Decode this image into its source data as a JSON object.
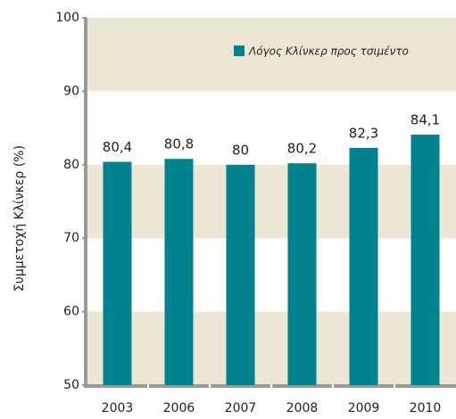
{
  "chart_data": {
    "type": "bar",
    "y_label": "Συμμετοχή Κλίνκερ (%)",
    "categories": [
      "2003",
      "2006",
      "2007",
      "2008",
      "2009",
      "2010"
    ],
    "series": [
      {
        "name": "Λόγος Κλίνκερ προς τσιμέντο",
        "color": "#00838f",
        "values": [
          80.4,
          80.8,
          80,
          80.2,
          82.3,
          84.1
        ],
        "value_labels": [
          "80,4",
          "80,8",
          "80",
          "80,2",
          "82,3",
          "84,1"
        ]
      }
    ],
    "ylim": [
      50,
      100
    ],
    "yticks": [
      50,
      60,
      70,
      80,
      90,
      100
    ],
    "band_color": "#ece7d4",
    "legend": "upper right"
  }
}
